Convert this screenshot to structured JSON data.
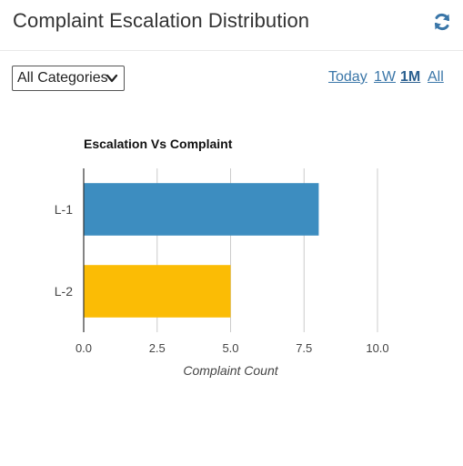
{
  "header": {
    "title": "Complaint Escalation Distribution",
    "refresh_icon": "refresh-icon"
  },
  "filter": {
    "selected": "All Categories"
  },
  "ranges": [
    {
      "label": "Today",
      "active": false
    },
    {
      "label": "1W",
      "active": false
    },
    {
      "label": "1M",
      "active": true
    },
    {
      "label": "All",
      "active": false
    }
  ],
  "colors": {
    "accent": "#3a76a8",
    "series": [
      "#3d8dc0",
      "#fbbc05"
    ],
    "grid": "#cccccc"
  },
  "chart_data": {
    "type": "bar",
    "orientation": "horizontal",
    "title": "Escalation Vs Complaint",
    "categories": [
      "L-1",
      "L-2"
    ],
    "values": [
      8,
      5
    ],
    "xlabel": "Complaint Count",
    "ylabel": "",
    "xlim": [
      0,
      10
    ],
    "ticks": [
      "0.0",
      "2.5",
      "5.0",
      "7.5",
      "10.0"
    ],
    "grid": true,
    "legend": "none"
  }
}
